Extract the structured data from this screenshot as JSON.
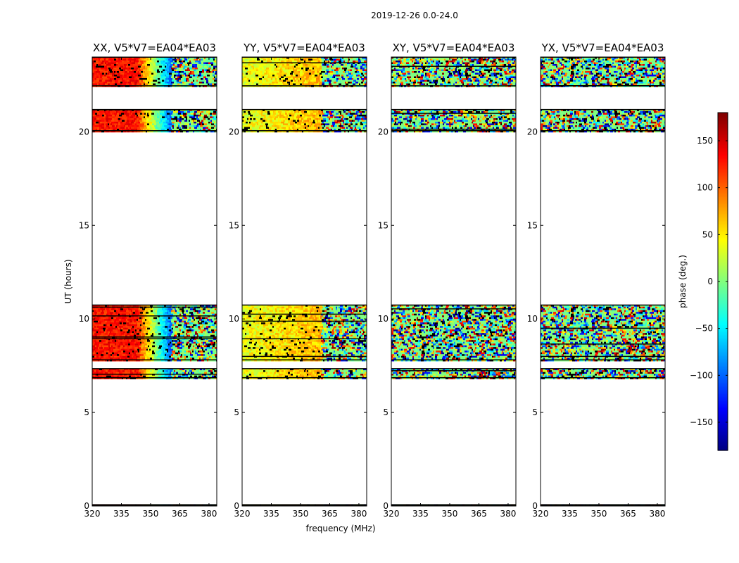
{
  "chart_data": {
    "type": "heatmap",
    "suptitle": "2019-12-26 0.0-24.0",
    "xlabel": "frequency (MHz)",
    "ylabel": "UT (hours)",
    "xlim": [
      320,
      384
    ],
    "ylim": [
      0,
      24
    ],
    "xticks": [
      "320",
      "335",
      "350",
      "365",
      "380"
    ],
    "yticks": [
      "0",
      "5",
      "10",
      "15",
      "20"
    ],
    "colorbar": {
      "label": "phase (deg.)",
      "vmin": -180,
      "vmax": 180,
      "ticks": [
        "150",
        "100",
        "50",
        "0",
        "−50",
        "−100",
        "−150"
      ],
      "colormap": "jet"
    },
    "data_time_ranges_hours": [
      [
        0.0,
        0.08
      ],
      [
        6.85,
        7.35
      ],
      [
        7.8,
        10.75
      ],
      [
        20.05,
        21.2
      ],
      [
        22.45,
        24.0
      ]
    ],
    "panels": [
      {
        "title": "XX, V5*V7=EA04*EA03",
        "mode": "xx"
      },
      {
        "title": "YY, V5*V7=EA04*EA03",
        "mode": "yy"
      },
      {
        "title": "XY, V5*V7=EA04*EA03",
        "mode": "cross"
      },
      {
        "title": "YX, V5*V7=EA04*EA03",
        "mode": "cross2"
      }
    ]
  }
}
